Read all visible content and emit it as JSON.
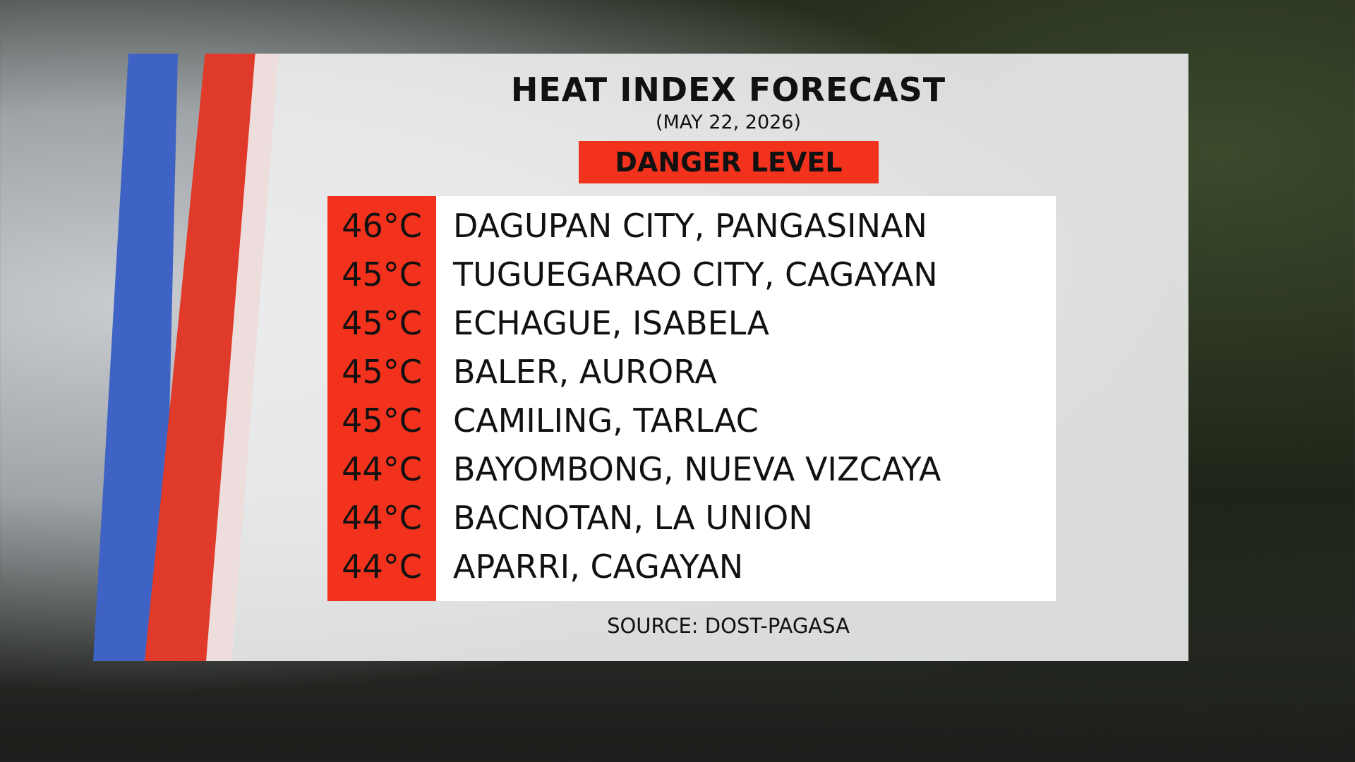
{
  "header": {
    "title": "HEAT INDEX FORECAST",
    "date": "(MAY 22, 2026)",
    "level": "DANGER LEVEL"
  },
  "table": {
    "rows": [
      [
        "46°C",
        "DAGUPAN CITY, PANGASINAN"
      ],
      [
        "45°C",
        "TUGUEGARAO CITY, CAGAYAN"
      ],
      [
        "45°C",
        "ECHAGUE, ISABELA"
      ],
      [
        "45°C",
        "BALER, AURORA"
      ],
      [
        "45°C",
        "CAMILING, TARLAC"
      ],
      [
        "44°C",
        "BAYOMBONG, NUEVA VIZCAYA"
      ],
      [
        "44°C",
        "BACNOTAN, LA UNION"
      ],
      [
        "44°C",
        "APARRI, CAGAYAN"
      ]
    ]
  },
  "source": "SOURCE: DOST-PAGASA"
}
